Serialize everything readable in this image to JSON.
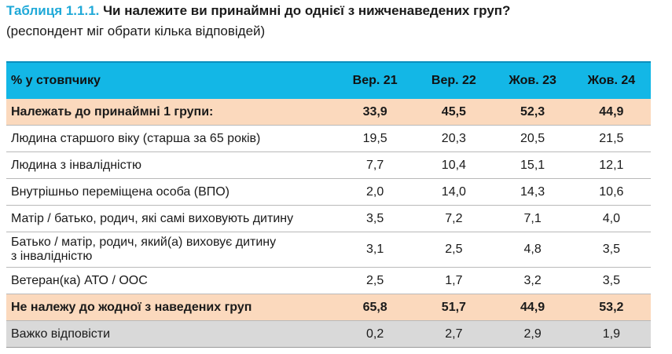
{
  "title": {
    "prefix": "Таблиця 1.1.1.",
    "text": "Чи належите ви принаймні до однієї з нижченаведених груп?"
  },
  "subtitle": "(респондент міг обрати кілька відповідей)",
  "table": {
    "header": {
      "label": "% у стовпчику",
      "columns": [
        "Вер. 21",
        "Вер. 22",
        "Жов. 23",
        "Жов. 24"
      ]
    },
    "rows": [
      {
        "label": "Належать до принаймні 1 групи:",
        "values": [
          "33,9",
          "45,5",
          "52,3",
          "44,9"
        ]
      },
      {
        "label": "Людина старшого віку (старша за 65 років)",
        "values": [
          "19,5",
          "20,3",
          "20,5",
          "21,5"
        ]
      },
      {
        "label": "Людина з інвалідністю",
        "values": [
          "7,7",
          "10,4",
          "15,1",
          "12,1"
        ]
      },
      {
        "label": "Внутрішньо переміщена особа (ВПО)",
        "values": [
          "2,0",
          "14,0",
          "14,3",
          "10,6"
        ]
      },
      {
        "label": "Матір / батько, родич, які самі виховують дитину",
        "values": [
          "3,5",
          "7,2",
          "7,1",
          "4,0"
        ]
      },
      {
        "label_line1": "Батько / матір, родич, який(а) виховує дитину",
        "label_line2": "з інвалідністю",
        "values": [
          "3,1",
          "2,5",
          "4,8",
          "3,5"
        ]
      },
      {
        "label": "Ветеран(ка) АТО / ООС",
        "values": [
          "2,5",
          "1,7",
          "3,2",
          "3,5"
        ]
      },
      {
        "label": "Не належу до жодної з наведених груп",
        "values": [
          "65,8",
          "51,7",
          "44,9",
          "53,2"
        ]
      },
      {
        "label": "Важко відповісти",
        "values": [
          "0,2",
          "2,7",
          "2,9",
          "1,9"
        ]
      }
    ]
  },
  "colors": {
    "accent": "#1fa9d8",
    "header_bg": "#13b7e6",
    "highlight_bg": "#fbd9bd",
    "gray_bg": "#d9d9d9"
  }
}
